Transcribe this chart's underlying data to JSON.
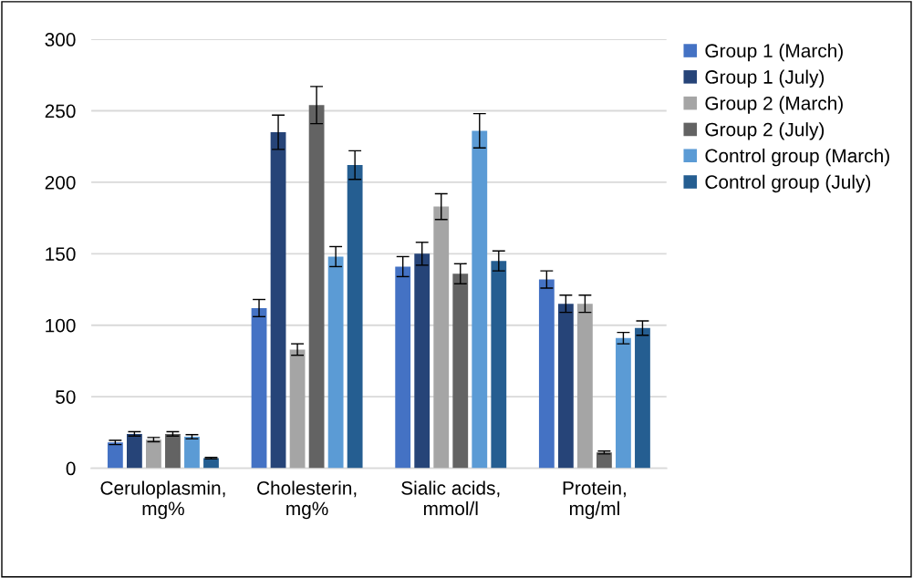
{
  "chart_data": {
    "type": "bar",
    "categories": [
      "Ceruloplasmin,\nmg%",
      "Cholesterin,\nmg%",
      "Sialic acids,\nmmol/l",
      "Protein,\nmg/ml"
    ],
    "series": [
      {
        "name": "Group 1 (March)",
        "color": "#4472c4",
        "values": [
          18,
          112,
          141,
          132
        ],
        "errors": [
          1.5,
          6,
          7,
          6
        ]
      },
      {
        "name": "Group 1 (July)",
        "color": "#264478",
        "values": [
          24,
          235,
          150,
          115
        ],
        "errors": [
          1.5,
          12,
          8,
          6
        ]
      },
      {
        "name": "Group 2 (March)",
        "color": "#a5a5a5",
        "values": [
          20,
          83,
          183,
          115
        ],
        "errors": [
          1.5,
          4,
          9,
          6
        ]
      },
      {
        "name": "Group 2 (July)",
        "color": "#636363",
        "values": [
          24,
          254,
          136,
          11
        ],
        "errors": [
          1.5,
          13,
          7,
          1
        ]
      },
      {
        "name": "Control group (March)",
        "color": "#5b9bd5",
        "values": [
          22,
          148,
          236,
          91
        ],
        "errors": [
          1.5,
          7,
          12,
          4
        ]
      },
      {
        "name": "Control group (July)",
        "color": "#255e91",
        "values": [
          7,
          212,
          145,
          98
        ],
        "errors": [
          0.5,
          10,
          7,
          5
        ]
      }
    ],
    "ylim": [
      0,
      300
    ],
    "yticks": [
      0,
      50,
      100,
      150,
      200,
      250,
      300
    ],
    "grid": "y",
    "legend": "right"
  }
}
